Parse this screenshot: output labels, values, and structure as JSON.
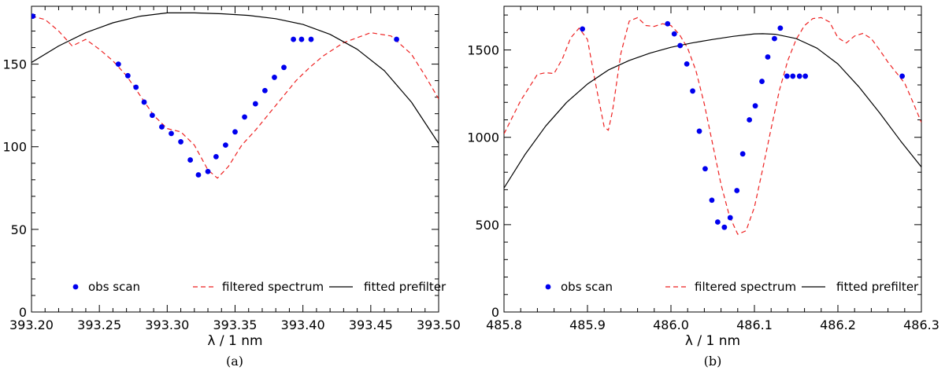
{
  "chart_data": [
    {
      "type": "line",
      "panel": "a",
      "caption": "(a)",
      "xlabel": "λ / 1 nm",
      "ylabel": "",
      "xlim": [
        393.2,
        393.5
      ],
      "ylim": [
        0,
        185
      ],
      "xticks": [
        393.2,
        393.25,
        393.3,
        393.35,
        393.4,
        393.45,
        393.5
      ],
      "xtick_labels": [
        "393.20",
        "393.25",
        "393.30",
        "393.35",
        "393.40",
        "393.45",
        "393.50"
      ],
      "yticks": [
        0,
        50,
        100,
        150
      ],
      "ytick_labels": [
        "0",
        "50",
        "100",
        "150"
      ],
      "legend": [
        "obs scan",
        "filtered spectrum",
        "fitted prefilter"
      ],
      "legend_position": "bottom",
      "series": [
        {
          "name": "obs scan",
          "style": "points",
          "color": "#0000ee",
          "x": [
            393.201,
            393.264,
            393.271,
            393.277,
            393.283,
            393.289,
            393.296,
            393.303,
            393.31,
            393.317,
            393.323,
            393.33,
            393.336,
            393.343,
            393.35,
            393.357,
            393.365,
            393.372,
            393.379,
            393.386,
            393.393,
            393.399,
            393.406,
            393.469
          ],
          "y": [
            179,
            150,
            143,
            136,
            127,
            119,
            112,
            108,
            103,
            92,
            83,
            85,
            94,
            101,
            109,
            118,
            126,
            134,
            142,
            148,
            165,
            165,
            165,
            165
          ]
        },
        {
          "name": "filtered spectrum",
          "style": "dashed",
          "color": "#ee2222",
          "x": [
            393.2,
            393.21,
            393.22,
            393.23,
            393.24,
            393.25,
            393.26,
            393.27,
            393.28,
            393.29,
            393.3,
            393.31,
            393.32,
            393.33,
            393.337,
            393.345,
            393.355,
            393.365,
            393.375,
            393.385,
            393.395,
            393.405,
            393.415,
            393.43,
            393.45,
            393.465,
            393.48,
            393.49,
            393.5
          ],
          "y": [
            179,
            177,
            170,
            161,
            165,
            159,
            152,
            143,
            131,
            119,
            111,
            109,
            101,
            86,
            81,
            88,
            101,
            110,
            120,
            130,
            140,
            148,
            155,
            163,
            169,
            167,
            156,
            143,
            129
          ]
        },
        {
          "name": "fitted prefilter",
          "style": "solid",
          "color": "#000000",
          "x": [
            393.2,
            393.22,
            393.24,
            393.26,
            393.28,
            393.3,
            393.32,
            393.34,
            393.36,
            393.38,
            393.4,
            393.42,
            393.44,
            393.46,
            393.48,
            393.5
          ],
          "y": [
            151,
            161,
            169,
            175,
            179,
            181,
            181,
            180.5,
            179.5,
            177.5,
            174,
            168,
            159,
            146,
            127,
            102
          ]
        }
      ]
    },
    {
      "type": "line",
      "panel": "b",
      "caption": "(b)",
      "xlabel": "λ / 1 nm",
      "ylabel": "",
      "xlim": [
        485.8,
        486.3
      ],
      "ylim": [
        0,
        1750
      ],
      "xticks": [
        485.8,
        485.9,
        486.0,
        486.1,
        486.2,
        486.3
      ],
      "xtick_labels": [
        "485.8",
        "485.9",
        "486.0",
        "486.1",
        "486.2",
        "486.3"
      ],
      "yticks": [
        0,
        500,
        1000,
        1500
      ],
      "ytick_labels": [
        "0",
        "500",
        "1000",
        "1500"
      ],
      "legend": [
        "obs scan",
        "filtered spectrum",
        "fitted prefilter"
      ],
      "legend_position": "bottom",
      "series": [
        {
          "name": "obs scan",
          "style": "points",
          "color": "#0000ee",
          "x": [
            485.894,
            485.996,
            486.004,
            486.011,
            486.019,
            486.026,
            486.034,
            486.041,
            486.049,
            486.056,
            486.064,
            486.071,
            486.079,
            486.086,
            486.094,
            486.101,
            486.109,
            486.116,
            486.124,
            486.131,
            486.139,
            486.146,
            486.154,
            486.161,
            486.277
          ],
          "y": [
            1620,
            1650,
            1592,
            1525,
            1420,
            1265,
            1035,
            820,
            640,
            515,
            485,
            540,
            695,
            905,
            1100,
            1180,
            1320,
            1460,
            1565,
            1625,
            1350,
            1350,
            1350,
            1350,
            1350
          ]
        },
        {
          "name": "filtered spectrum",
          "style": "dashed",
          "color": "#ee2222",
          "x": [
            485.8,
            485.82,
            485.84,
            485.85,
            485.86,
            485.87,
            485.88,
            485.89,
            485.9,
            485.91,
            485.92,
            485.925,
            485.93,
            485.94,
            485.95,
            485.96,
            485.97,
            485.98,
            485.99,
            486.0,
            486.01,
            486.02,
            486.03,
            486.04,
            486.05,
            486.06,
            486.07,
            486.08,
            486.09,
            486.1,
            486.11,
            486.12,
            486.13,
            486.14,
            486.15,
            486.16,
            486.17,
            486.18,
            486.19,
            486.2,
            486.21,
            486.22,
            486.23,
            486.24,
            486.25,
            486.26,
            486.27,
            486.28,
            486.29,
            486.3
          ],
          "y": [
            1020,
            1210,
            1360,
            1370,
            1365,
            1450,
            1570,
            1625,
            1560,
            1300,
            1060,
            1040,
            1150,
            1480,
            1665,
            1685,
            1640,
            1635,
            1650,
            1640,
            1590,
            1510,
            1380,
            1190,
            960,
            730,
            550,
            445,
            465,
            600,
            820,
            1050,
            1270,
            1440,
            1560,
            1640,
            1680,
            1685,
            1660,
            1570,
            1540,
            1580,
            1595,
            1565,
            1500,
            1430,
            1370,
            1310,
            1200,
            1085
          ]
        },
        {
          "name": "fitted prefilter",
          "style": "solid",
          "color": "#000000",
          "x": [
            485.8,
            485.825,
            485.85,
            485.875,
            485.9,
            485.925,
            485.95,
            485.975,
            486.0,
            486.025,
            486.05,
            486.075,
            486.1,
            486.11,
            486.125,
            486.15,
            486.175,
            486.2,
            486.225,
            486.25,
            486.275,
            486.3
          ],
          "y": [
            710,
            900,
            1065,
            1200,
            1305,
            1385,
            1440,
            1482,
            1515,
            1540,
            1560,
            1578,
            1592,
            1593,
            1590,
            1565,
            1510,
            1420,
            1290,
            1140,
            980,
            830
          ]
        }
      ]
    }
  ]
}
